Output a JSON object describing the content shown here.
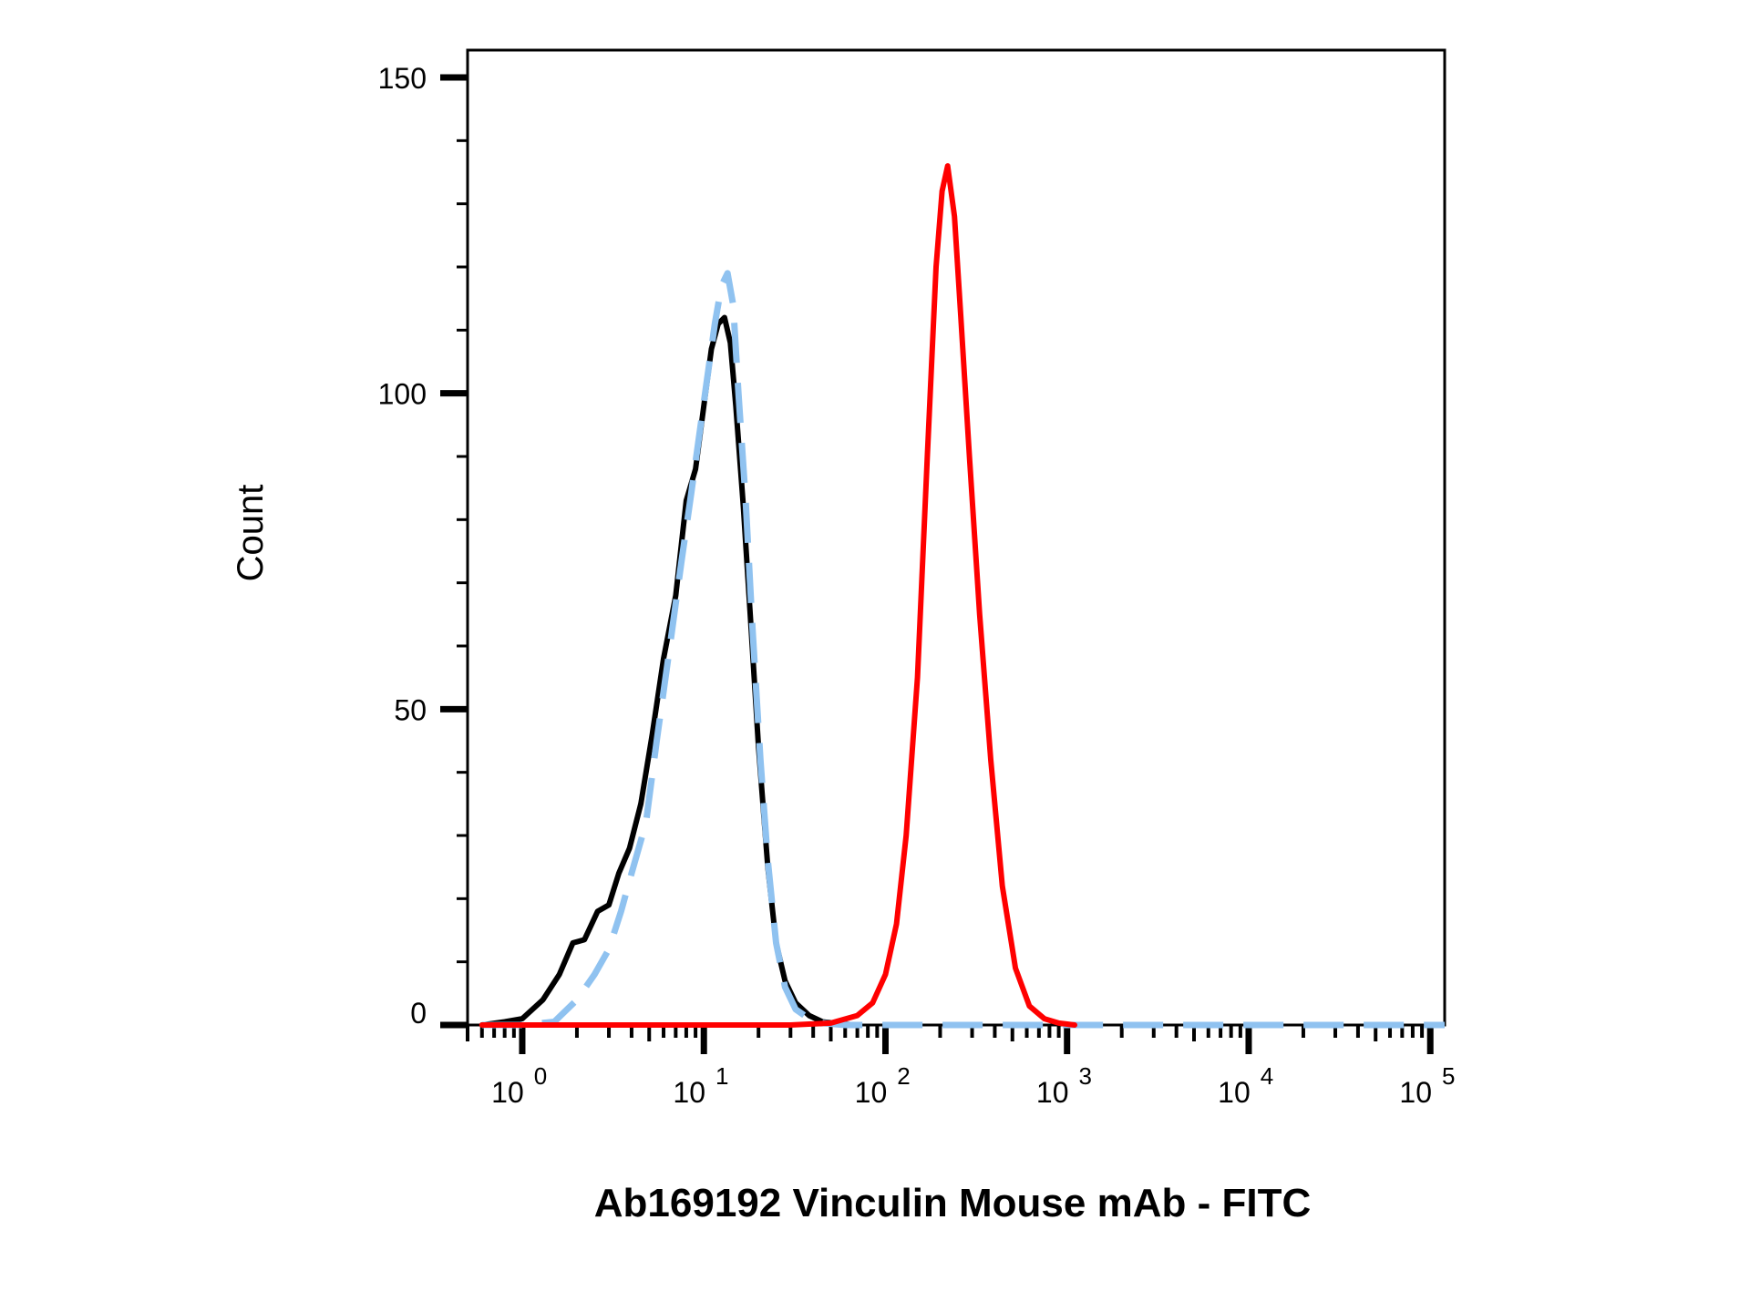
{
  "chart_data": {
    "type": "line",
    "title": "",
    "xlabel": "Ab169192 Vinculin Mouse mAb - FITC",
    "ylabel": "Count",
    "x_scale": "log",
    "xlim": [
      0.5,
      120000
    ],
    "ylim": [
      0,
      150
    ],
    "y_ticks": [
      0,
      50,
      100,
      150
    ],
    "x_ticks": [
      {
        "value": 1,
        "base": "10",
        "exp": "0"
      },
      {
        "value": 10,
        "base": "10",
        "exp": "1"
      },
      {
        "value": 100,
        "base": "10",
        "exp": "2"
      },
      {
        "value": 1000,
        "base": "10",
        "exp": "3"
      },
      {
        "value": 10000,
        "base": "10",
        "exp": "4"
      },
      {
        "value": 100000,
        "base": "10",
        "exp": "5"
      }
    ],
    "grid": false,
    "legend": "none",
    "series": [
      {
        "color": "#000000",
        "style": "solid",
        "x": [
          0.6,
          0.8,
          1.0,
          1.3,
          1.6,
          1.9,
          2.2,
          2.6,
          3.0,
          3.4,
          3.9,
          4.5,
          5.2,
          6.0,
          7.0,
          8.0,
          9.0,
          10.0,
          11.0,
          12.0,
          13.0,
          14.0,
          15.0,
          16.5,
          18.0,
          20.0,
          22.5,
          25.0,
          28.0,
          32.0,
          38.0,
          45.0,
          55.0,
          70.0
        ],
        "y": [
          0,
          0.5,
          1,
          4,
          8,
          13,
          13.5,
          18,
          19,
          24,
          28,
          35,
          46,
          58,
          68,
          83,
          88,
          98,
          107,
          111,
          112,
          108,
          98,
          82,
          65,
          44,
          25,
          13,
          7,
          3.5,
          1.5,
          0.5,
          0.2,
          0
        ]
      },
      {
        "color": "#8fc2f0",
        "style": "dashed",
        "x": [
          0.6,
          1.0,
          1.5,
          2.0,
          2.5,
          3.0,
          3.5,
          4.0,
          4.8,
          5.5,
          6.5,
          7.5,
          8.5,
          9.5,
          10.5,
          11.5,
          12.5,
          13.5,
          14.5,
          15.5,
          17.0,
          18.5,
          20.5,
          22.5,
          25.0,
          28.0,
          32.0,
          38.0,
          45.0,
          60.0,
          100.0,
          1000.0,
          10000.0,
          100000.0,
          120000.0
        ],
        "y": [
          0,
          0,
          0.5,
          4,
          8,
          12,
          18,
          24,
          32,
          45,
          60,
          73,
          84,
          94,
          103,
          111,
          117,
          119,
          114,
          100,
          83,
          63,
          42,
          26,
          13,
          6,
          2.5,
          1,
          0.3,
          0,
          0,
          0,
          0,
          0,
          0
        ]
      },
      {
        "color": "#ff0000",
        "style": "solid",
        "x": [
          0.6,
          10.0,
          30.0,
          50.0,
          70.0,
          85.0,
          100.0,
          115.0,
          130.0,
          150.0,
          170.0,
          190.0,
          205.0,
          220.0,
          240.0,
          260.0,
          290.0,
          330.0,
          380.0,
          440.0,
          520.0,
          620.0,
          750.0,
          900.0,
          1100.0
        ],
        "y": [
          0,
          0,
          0,
          0.3,
          1.5,
          3.5,
          8,
          16,
          30,
          55,
          90,
          120,
          132,
          136,
          128,
          112,
          90,
          65,
          42,
          22,
          9,
          3,
          1,
          0.3,
          0
        ]
      }
    ]
  }
}
